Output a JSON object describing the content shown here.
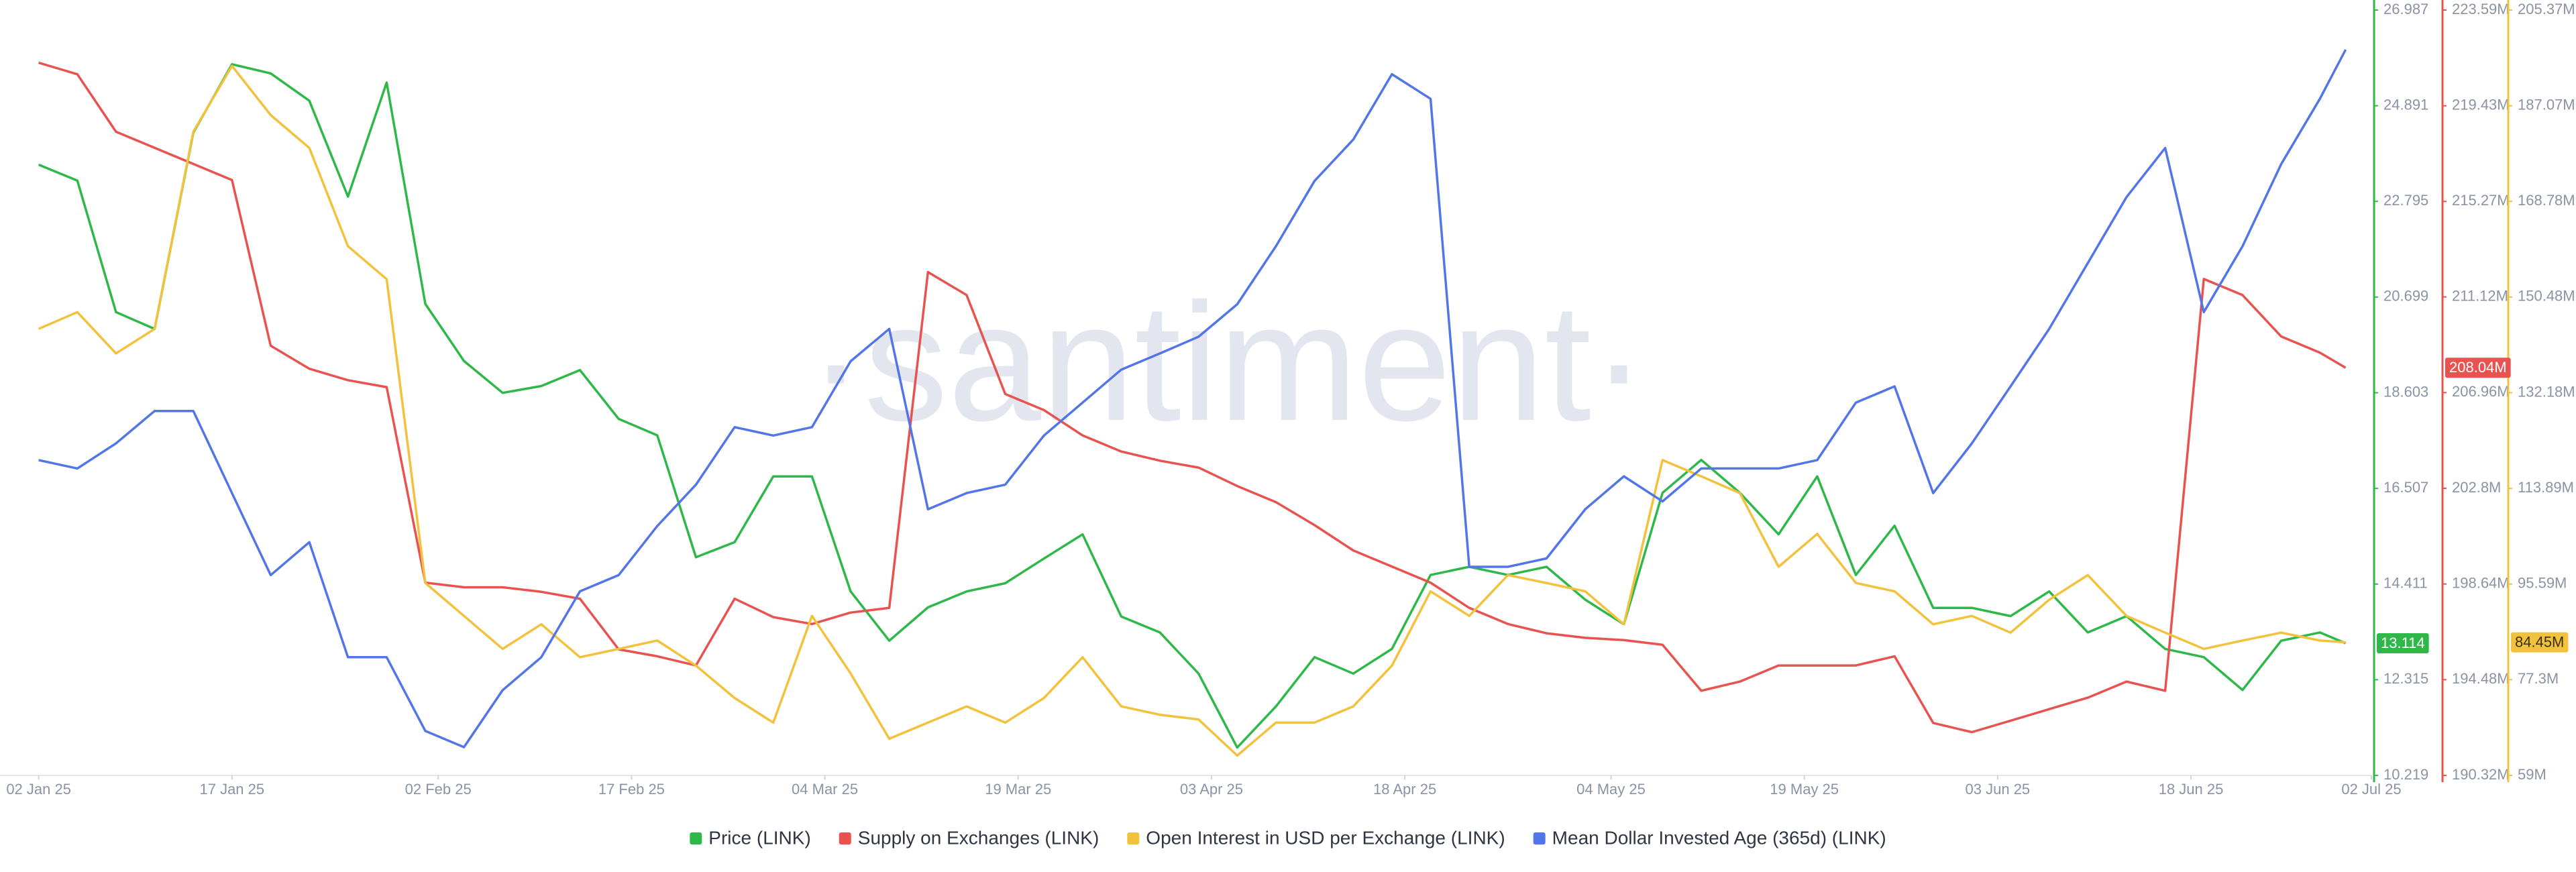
{
  "chart_data": {
    "type": "line",
    "watermark": "·santiment·",
    "x": [
      "2025-01-02",
      "2025-01-05",
      "2025-01-08",
      "2025-01-11",
      "2025-01-14",
      "2025-01-17",
      "2025-01-20",
      "2025-01-23",
      "2025-01-26",
      "2025-01-29",
      "2025-02-01",
      "2025-02-04",
      "2025-02-07",
      "2025-02-10",
      "2025-02-13",
      "2025-02-16",
      "2025-02-19",
      "2025-02-22",
      "2025-02-25",
      "2025-02-28",
      "2025-03-03",
      "2025-03-06",
      "2025-03-09",
      "2025-03-12",
      "2025-03-15",
      "2025-03-18",
      "2025-03-21",
      "2025-03-24",
      "2025-03-27",
      "2025-03-30",
      "2025-04-02",
      "2025-04-05",
      "2025-04-08",
      "2025-04-11",
      "2025-04-14",
      "2025-04-17",
      "2025-04-20",
      "2025-04-23",
      "2025-04-26",
      "2025-04-29",
      "2025-05-02",
      "2025-05-05",
      "2025-05-08",
      "2025-05-11",
      "2025-05-14",
      "2025-05-17",
      "2025-05-20",
      "2025-05-23",
      "2025-05-26",
      "2025-05-29",
      "2025-06-01",
      "2025-06-04",
      "2025-06-07",
      "2025-06-10",
      "2025-06-13",
      "2025-06-16",
      "2025-06-19",
      "2025-06-22",
      "2025-06-25",
      "2025-06-28",
      "2025-06-30"
    ],
    "xlim": [
      "2024-12-30",
      "2025-07-02"
    ],
    "xticks": [
      {
        "value": "2025-01-02",
        "label": "02 Jan 25"
      },
      {
        "value": "2025-01-17",
        "label": "17 Jan 25"
      },
      {
        "value": "2025-02-02",
        "label": "02 Feb 25"
      },
      {
        "value": "2025-02-17",
        "label": "17 Feb 25"
      },
      {
        "value": "2025-03-04",
        "label": "04 Mar 25"
      },
      {
        "value": "2025-03-19",
        "label": "19 Mar 25"
      },
      {
        "value": "2025-04-03",
        "label": "03 Apr 25"
      },
      {
        "value": "2025-04-18",
        "label": "18 Apr 25"
      },
      {
        "value": "2025-05-04",
        "label": "04 May 25"
      },
      {
        "value": "2025-05-19",
        "label": "19 May 25"
      },
      {
        "value": "2025-06-03",
        "label": "03 Jun 25"
      },
      {
        "value": "2025-06-18",
        "label": "18 Jun 25"
      },
      {
        "value": "2025-07-02",
        "label": "02 Jul 25"
      }
    ],
    "ylim": [
      10.219,
      26.987
    ],
    "yticks": [
      26.987,
      24.891,
      22.795,
      20.699,
      18.603,
      16.507,
      14.411,
      12.315,
      10.219
    ],
    "y2lim": [
      190.32,
      223.59
    ],
    "y2ticks": [
      {
        "value": 223.59,
        "label": "223.59M"
      },
      {
        "value": 219.43,
        "label": "219.43M"
      },
      {
        "value": 215.27,
        "label": "215.27M"
      },
      {
        "value": 211.12,
        "label": "211.12M"
      },
      {
        "value": 206.96,
        "label": "206.96M"
      },
      {
        "value": 202.8,
        "label": "202.8M"
      },
      {
        "value": 198.64,
        "label": "198.64M"
      },
      {
        "value": 194.48,
        "label": "194.48M"
      },
      {
        "value": 190.32,
        "label": "190.32M"
      }
    ],
    "y3lim": [
      59,
      205.37
    ],
    "y3ticks": [
      {
        "value": 205.37,
        "label": "205.37M"
      },
      {
        "value": 187.07,
        "label": "187.07M"
      },
      {
        "value": 168.78,
        "label": "168.78M"
      },
      {
        "value": 150.48,
        "label": "150.48M"
      },
      {
        "value": 132.18,
        "label": "132.18M"
      },
      {
        "value": 113.89,
        "label": "113.89M"
      },
      {
        "value": 95.59,
        "label": "95.59M"
      },
      {
        "value": 77.3,
        "label": "77.3M"
      },
      {
        "value": 59,
        "label": "59M"
      }
    ],
    "series": [
      {
        "name": "Price (LINK)",
        "color": "#2fb84a",
        "axis": "y",
        "current": 13.114,
        "values": [
          23.6,
          23.25,
          20.37,
          20.0,
          24.3,
          25.8,
          25.6,
          25.0,
          22.9,
          25.4,
          20.55,
          19.3,
          18.6,
          18.75,
          19.1,
          18.03,
          17.67,
          15.0,
          15.33,
          16.77,
          16.77,
          14.25,
          13.17,
          13.9,
          14.25,
          14.43,
          14.97,
          15.5,
          13.7,
          13.35,
          12.45,
          10.83,
          11.73,
          12.81,
          12.45,
          12.99,
          14.61,
          14.79,
          14.61,
          14.79,
          14.07,
          13.53,
          16.41,
          17.13,
          16.41,
          15.5,
          16.77,
          14.61,
          15.69,
          13.89,
          13.89,
          13.71,
          14.25,
          13.35,
          13.71,
          12.99,
          12.81,
          12.09,
          13.17,
          13.35,
          13.114
        ]
      },
      {
        "name": "Supply on Exchanges (LINK)",
        "color": "#e8534f",
        "axis": "y2",
        "current": {
          "value": 208.04,
          "label": "208.04M"
        },
        "values": [
          221.3,
          220.8,
          218.3,
          217.6,
          216.9,
          216.2,
          209.0,
          208.0,
          207.5,
          207.2,
          198.7,
          198.5,
          198.5,
          198.3,
          198.0,
          195.8,
          195.5,
          195.1,
          198.0,
          197.2,
          196.9,
          197.4,
          197.6,
          212.2,
          211.2,
          206.9,
          206.2,
          205.1,
          204.4,
          204.0,
          203.7,
          202.9,
          202.2,
          201.2,
          200.1,
          199.4,
          198.7,
          197.6,
          196.9,
          196.5,
          196.3,
          196.2,
          196.0,
          194.0,
          194.4,
          195.1,
          195.1,
          195.1,
          195.5,
          192.6,
          192.2,
          192.7,
          193.2,
          193.7,
          194.4,
          194.0,
          211.9,
          211.2,
          209.4,
          208.7,
          208.04
        ]
      },
      {
        "name": "Open Interest in USD per Exchange (LINK)",
        "color": "#f2c23c",
        "axis": "y3",
        "current": {
          "value": 84.45,
          "label": "84.45M"
        },
        "values": [
          144.4,
          147.6,
          139.7,
          144.4,
          182.1,
          194.7,
          185.3,
          179.0,
          160.2,
          153.9,
          95.8,
          89.5,
          83.2,
          87.9,
          81.6,
          83.2,
          84.8,
          80.0,
          73.8,
          69.1,
          89.5,
          78.5,
          66.0,
          69.1,
          72.2,
          69.1,
          73.8,
          81.6,
          72.2,
          70.6,
          69.7,
          62.8,
          69.1,
          69.1,
          72.2,
          80.0,
          94.2,
          89.5,
          97.3,
          95.8,
          94.2,
          87.9,
          119.3,
          116.2,
          113.0,
          98.9,
          105.2,
          95.8,
          94.2,
          87.9,
          89.5,
          86.3,
          92.6,
          97.3,
          89.5,
          86.3,
          83.2,
          84.8,
          86.3,
          84.8,
          84.45
        ]
      },
      {
        "name": "Mean Dollar Invested Age (365d) (LINK)",
        "color": "#5275e8",
        "axis": "y3",
        "values": [
          119.3,
          117.7,
          122.5,
          128.7,
          128.7,
          113.0,
          97.3,
          103.6,
          81.6,
          81.6,
          67.5,
          64.4,
          75.3,
          81.6,
          94.2,
          97.3,
          106.7,
          114.6,
          125.6,
          124.0,
          125.6,
          138.2,
          144.4,
          109.9,
          113.0,
          114.6,
          124.0,
          130.3,
          136.6,
          139.7,
          142.9,
          149.1,
          160.2,
          172.7,
          180.6,
          193.1,
          188.4,
          98.9,
          98.9,
          100.5,
          109.9,
          116.2,
          111.4,
          117.7,
          117.7,
          117.7,
          119.3,
          130.3,
          133.4,
          113.0,
          122.5,
          133.4,
          144.4,
          157.0,
          169.6,
          179.0,
          147.6,
          160.2,
          175.9,
          188.4,
          197.8
        ]
      }
    ]
  }
}
